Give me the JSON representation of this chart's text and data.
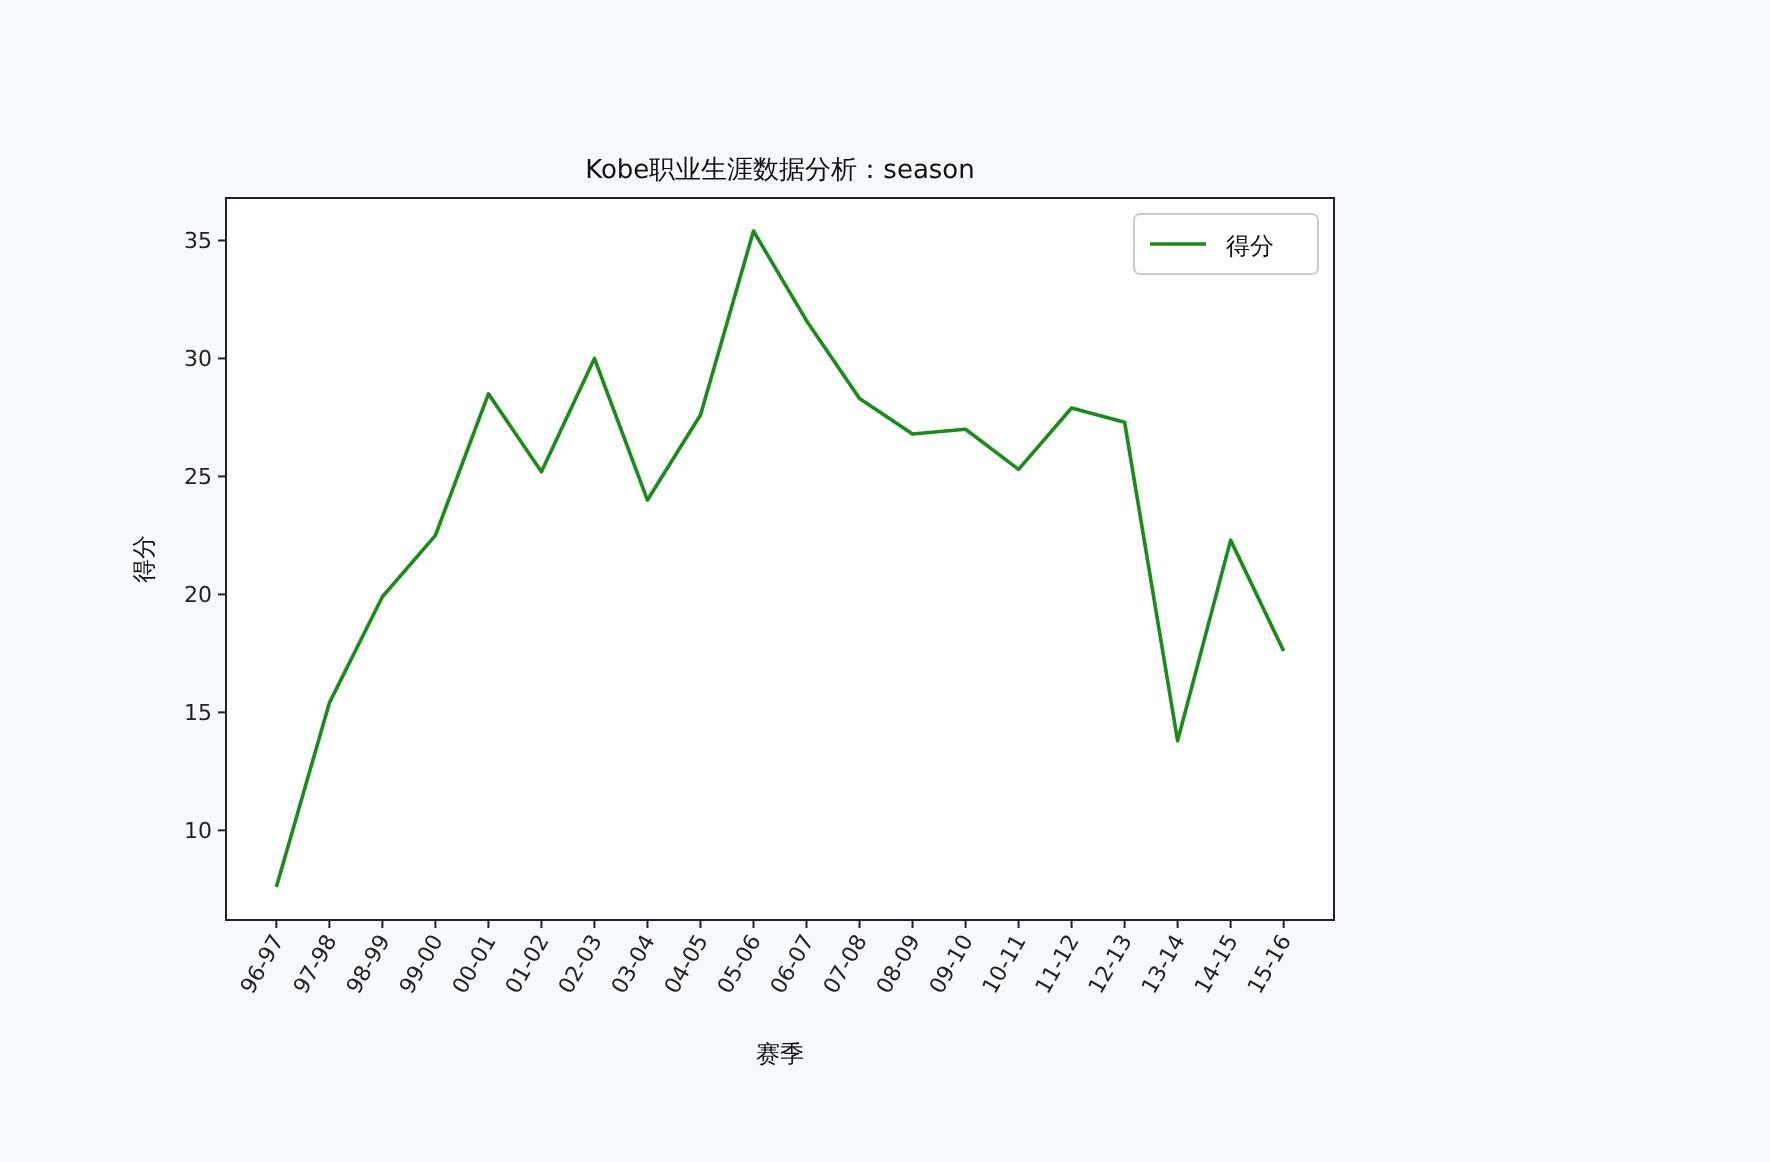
{
  "chart_data": {
    "type": "line",
    "title": "Kobe职业生涯数据分析：season",
    "xlabel": "赛季",
    "ylabel": "得分",
    "categories": [
      "96-97",
      "97-98",
      "98-99",
      "99-00",
      "00-01",
      "01-02",
      "02-03",
      "03-04",
      "04-05",
      "05-06",
      "06-07",
      "07-08",
      "08-09",
      "09-10",
      "10-11",
      "11-12",
      "12-13",
      "13-14",
      "14-15",
      "15-16"
    ],
    "series": [
      {
        "name": "得分",
        "color": "#1a8c1a",
        "values": [
          7.6,
          15.4,
          19.9,
          22.5,
          28.5,
          25.2,
          30.0,
          24.0,
          27.6,
          35.4,
          31.6,
          28.3,
          26.8,
          27.0,
          25.3,
          27.9,
          27.3,
          13.8,
          22.3,
          17.6
        ]
      }
    ],
    "ylim": [
      6.2,
      36.8
    ],
    "yticks": [
      10,
      15,
      20,
      25,
      30,
      35
    ],
    "grid": false,
    "legend": "top right",
    "marker": "none",
    "line_style": "solid"
  }
}
